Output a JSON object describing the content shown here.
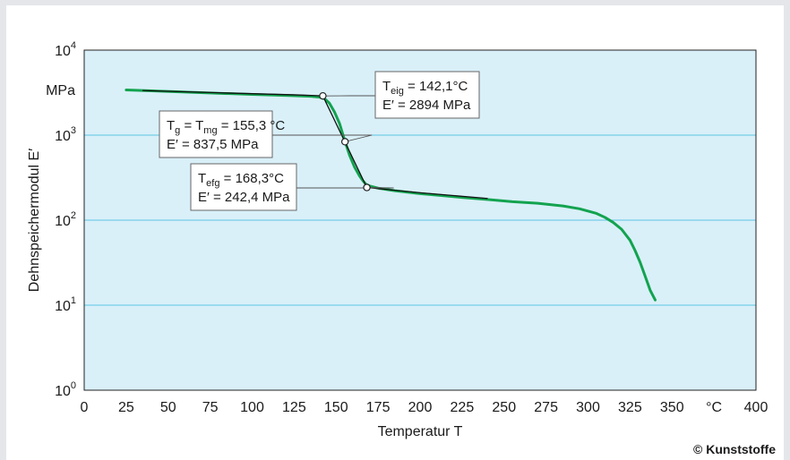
{
  "chart_data": {
    "type": "line",
    "ylabel": "Dehnspeichermodul E′",
    "xlabel": "Temperatur T",
    "y_unit": "MPa",
    "x_unit": "°C",
    "x_ticks": [
      "0",
      "25",
      "50",
      "75",
      "100",
      "125",
      "150",
      "175",
      "200",
      "225",
      "250",
      "275",
      "300",
      "325",
      "350",
      "400"
    ],
    "y_ticks": [
      {
        "base": "10",
        "exp": "0"
      },
      {
        "base": "10",
        "exp": "1"
      },
      {
        "base": "10",
        "exp": "2"
      },
      {
        "base": "10",
        "exp": "3"
      },
      {
        "base": "10",
        "exp": "4"
      }
    ],
    "xlim": [
      0,
      400
    ],
    "ylim": [
      1,
      10000
    ],
    "y_scale": "log",
    "grid": "horizontal",
    "series": [
      {
        "color": "#13a34f",
        "x": [
          25,
          40,
          60,
          80,
          100,
          120,
          135,
          140,
          143,
          146,
          149,
          152,
          155,
          158,
          161,
          164,
          166,
          168,
          170,
          175,
          185,
          200,
          215,
          225,
          240,
          255,
          270,
          285,
          295,
          305,
          310,
          315,
          320,
          325,
          328,
          331,
          334,
          337,
          340
        ],
        "y": [
          3400,
          3320,
          3210,
          3110,
          3010,
          2930,
          2860,
          2800,
          2700,
          2380,
          1880,
          1380,
          880,
          580,
          420,
          330,
          290,
          262,
          252,
          238,
          222,
          205,
          193,
          185,
          175,
          165,
          158,
          147,
          136,
          120,
          108,
          94,
          78,
          58,
          44,
          32,
          22,
          15,
          11.5
        ]
      },
      {
        "color": "#111111",
        "x": [
          35,
          80,
          125,
          142.1
        ],
        "y": [
          3350,
          3150,
          2980,
          2894
        ]
      },
      {
        "color": "#111111",
        "x": [
          142.1,
          168.3
        ],
        "y": [
          2894,
          242.4
        ]
      },
      {
        "color": "#111111",
        "x": [
          168.3,
          200,
          240
        ],
        "y": [
          242.4,
          210,
          180
        ]
      }
    ],
    "points": [
      {
        "x": 142.1,
        "y": 2894
      },
      {
        "x": 155.3,
        "y": 837.5
      },
      {
        "x": 168.3,
        "y": 242.4
      }
    ],
    "annotations": [
      {
        "lines": [
          {
            "base": "T",
            "sub": "eig",
            "rest": " = 142,1°C"
          },
          {
            "text": "E′ = 2894 MPa"
          }
        ],
        "x": 142.1,
        "y": 2894
      },
      {
        "lines": [
          {
            "base": "T",
            "sub": "g",
            "mid": " = T",
            "sub2": "mg",
            "rest": " = 155,3 °C"
          },
          {
            "text": "E′ = 837,5 MPa"
          }
        ],
        "x": 155.3,
        "y": 837.5
      },
      {
        "lines": [
          {
            "base": "T",
            "sub": "efg",
            "rest": " = 168,3°C"
          },
          {
            "text": "E′ = 242,4 MPa"
          }
        ],
        "x": 168.3,
        "y": 242.4
      }
    ],
    "colors": {
      "plot_bg": "#d9f0f9",
      "grid": "#5cc3e3",
      "curve": "#13a34f",
      "tangent": "#111111",
      "page_bg": "#ffffff"
    }
  },
  "credit": "© Kunststoffe"
}
